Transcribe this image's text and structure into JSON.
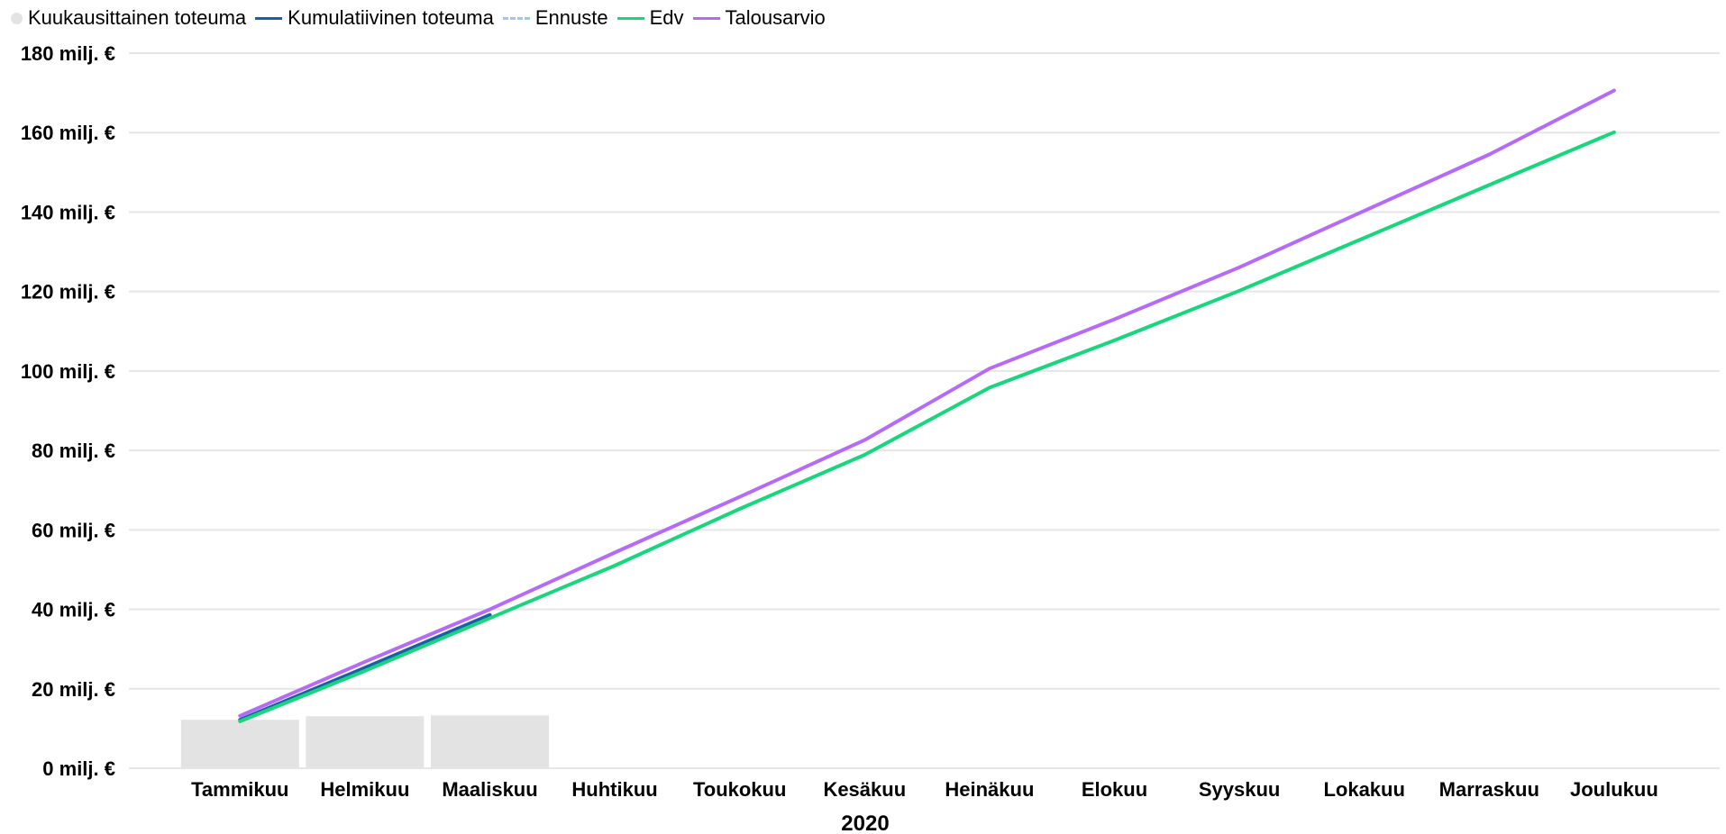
{
  "chart_data": {
    "type": "bar+line",
    "title": "",
    "x_axis_title": "2020",
    "ylabel": "",
    "ylim": [
      0,
      180
    ],
    "y_ticks": [
      0,
      20,
      40,
      60,
      80,
      100,
      120,
      140,
      160,
      180
    ],
    "y_tick_suffix": " milj. €",
    "grid": true,
    "legend_position": "top-left",
    "categories": [
      "Tammikuu",
      "Helmikuu",
      "Maaliskuu",
      "Huhtikuu",
      "Toukokuu",
      "Kesäkuu",
      "Heinäkuu",
      "Elokuu",
      "Syyskuu",
      "Lokakuu",
      "Marraskuu",
      "Joulukuu"
    ],
    "series": [
      {
        "name": "Kuukausittainen toteuma",
        "kind": "bar",
        "color": "#e3e3e3",
        "values": [
          12.2,
          13.1,
          13.3,
          null,
          null,
          null,
          null,
          null,
          null,
          null,
          null,
          null
        ]
      },
      {
        "name": "Kumulatiivinen toteuma",
        "kind": "line",
        "color": "#1a5ea8",
        "dash": "solid",
        "values": [
          12.2,
          25.3,
          38.6,
          null,
          null,
          null,
          null,
          null,
          null,
          null,
          null,
          null
        ]
      },
      {
        "name": "Ennuste",
        "kind": "line",
        "color": "#9cc8f2",
        "dash": "dashed",
        "values": [
          null,
          null,
          null,
          null,
          null,
          null,
          null,
          null,
          null,
          null,
          null,
          null
        ]
      },
      {
        "name": "Edv",
        "kind": "line",
        "color": "#18d67e",
        "dash": "solid",
        "values": [
          11.8,
          24.5,
          37.8,
          51.0,
          65.3,
          78.9,
          95.8,
          107.7,
          120.2,
          133.5,
          146.8,
          160.1
        ]
      },
      {
        "name": "Talousarvio",
        "kind": "line",
        "color": "#b46cf7",
        "dash": "solid",
        "values": [
          13.2,
          26.8,
          40.0,
          54.3,
          68.3,
          82.6,
          100.6,
          113.0,
          126.1,
          140.3,
          154.5,
          170.6
        ]
      }
    ]
  }
}
